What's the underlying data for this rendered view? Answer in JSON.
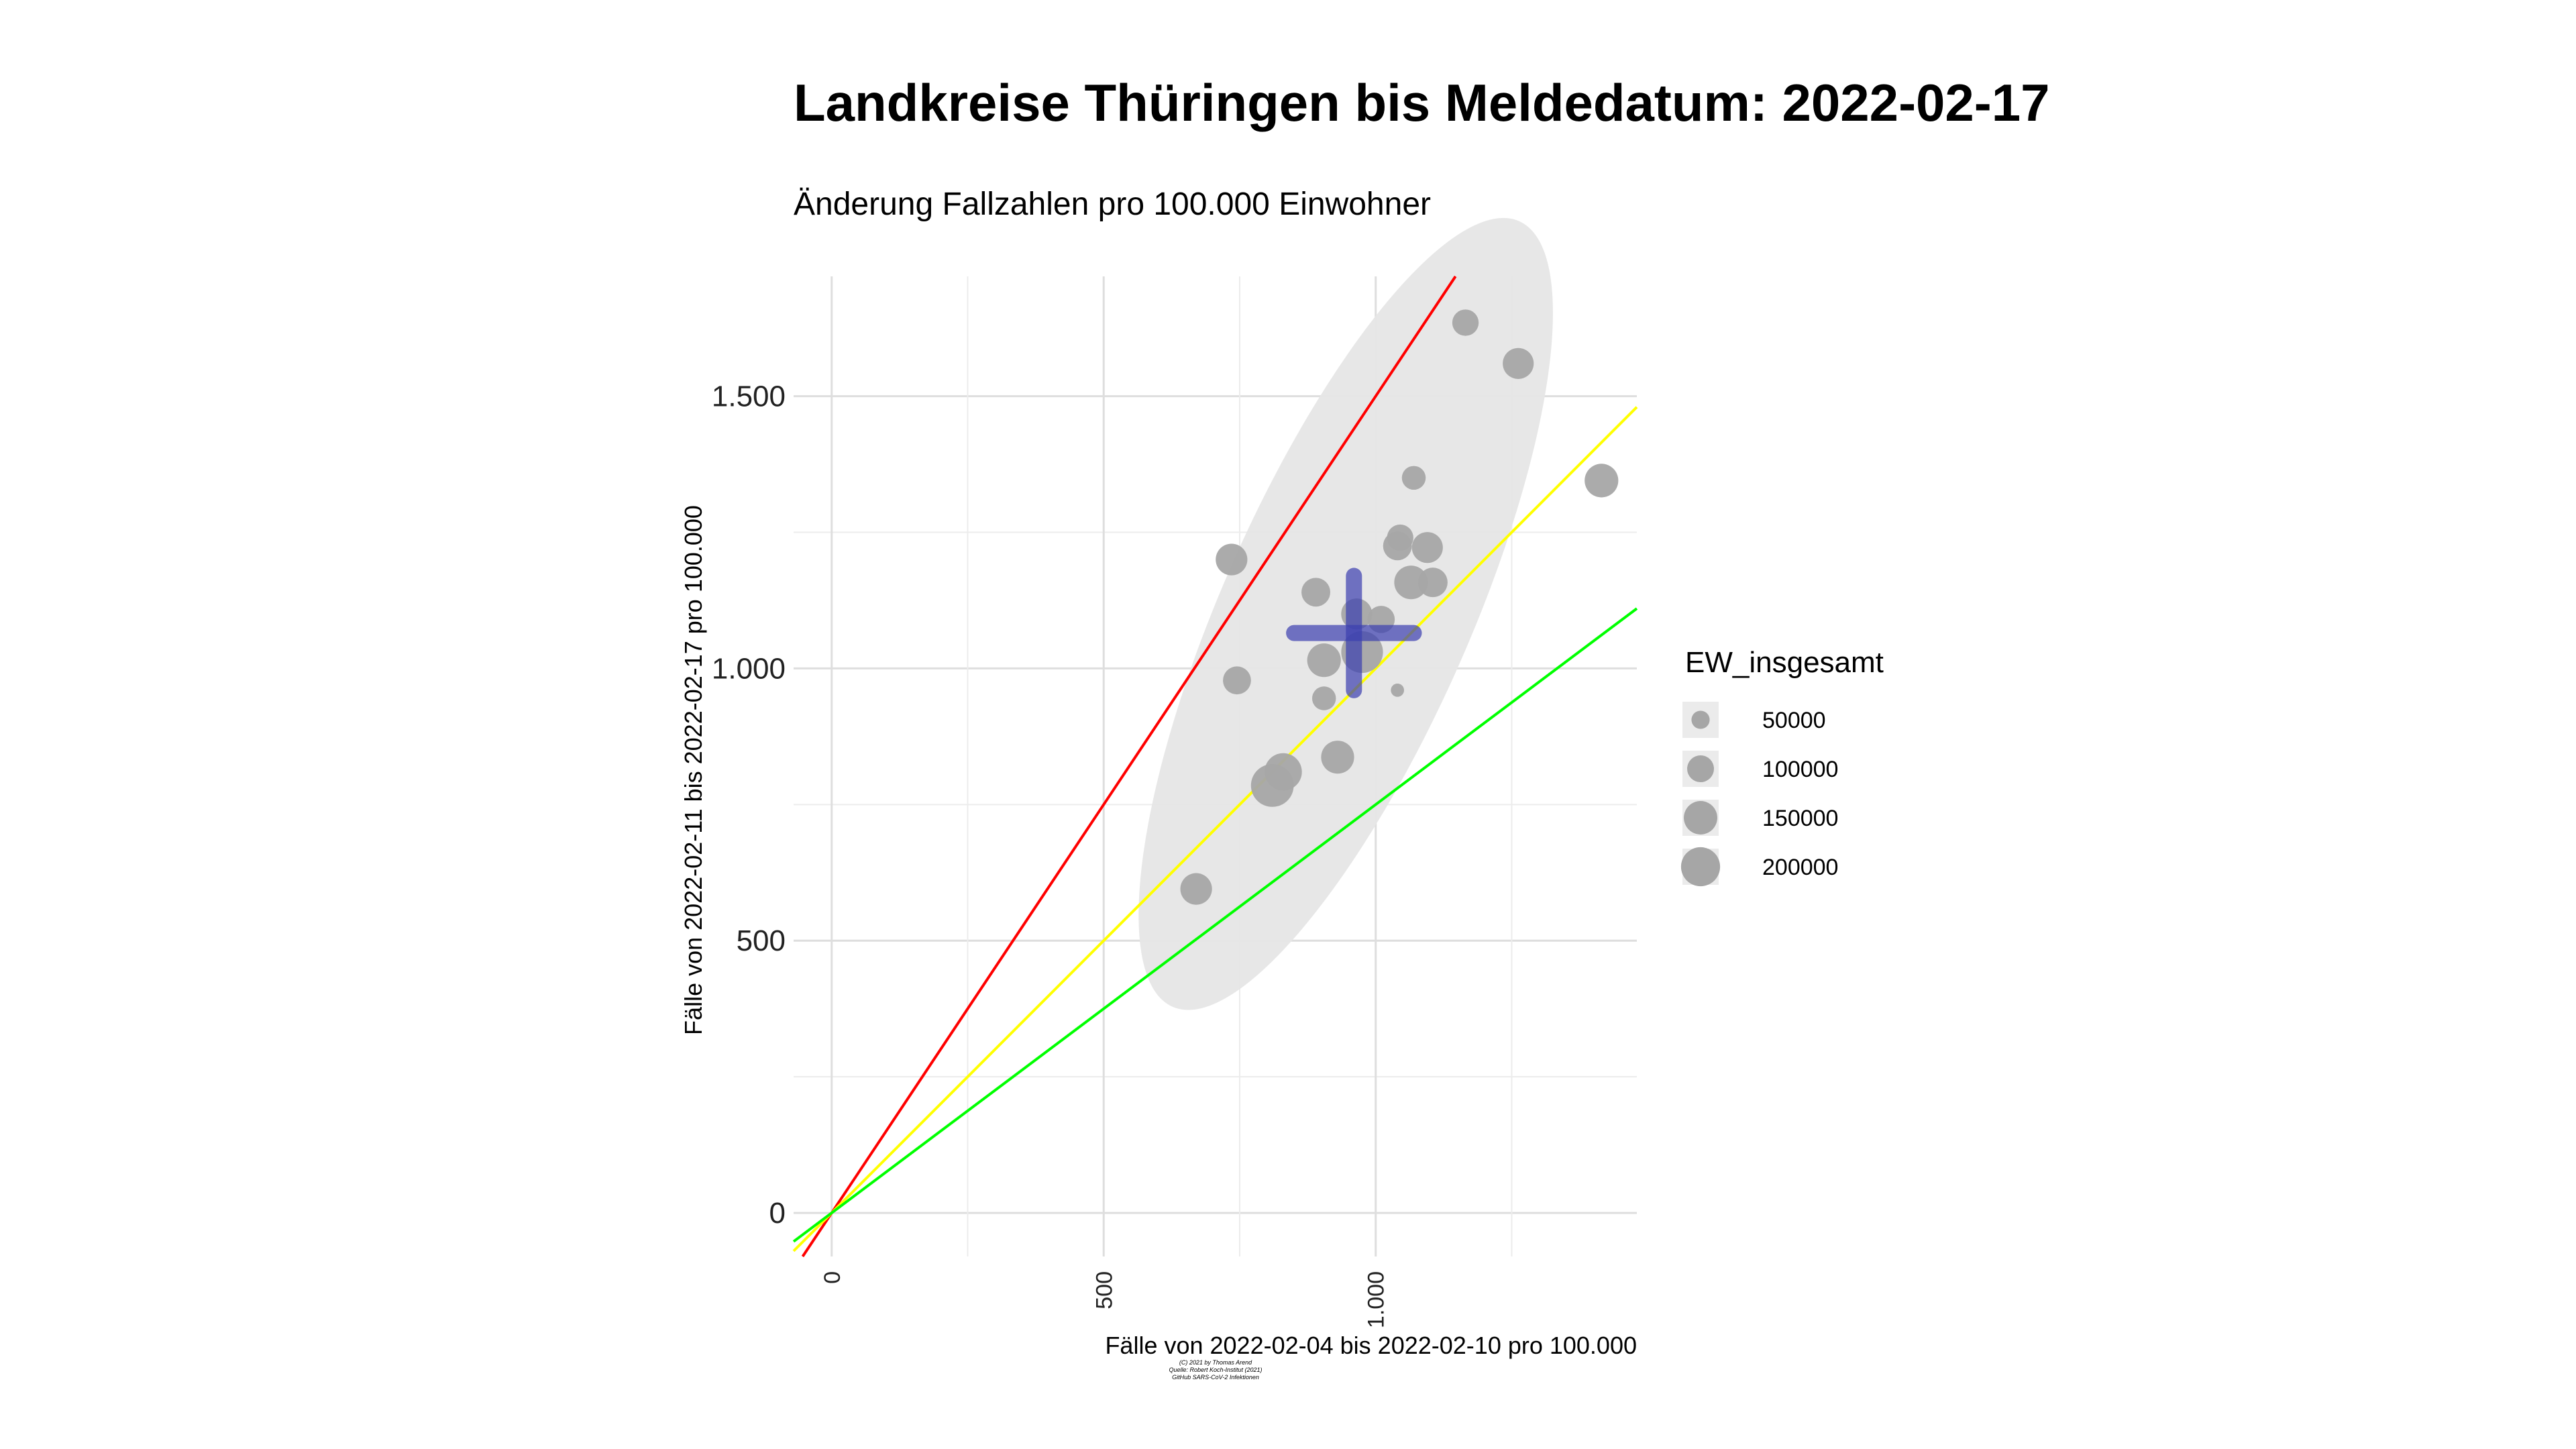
{
  "chart_data": {
    "type": "scatter",
    "title": "Landkreise Thüringen bis Meldedatum: 2022-02-17",
    "subtitle": "Änderung Fallzahlen pro 100.000 Einwohner",
    "xlabel": "Fälle von 2022-02-04 bis 2022-02-10 pro 100.000",
    "ylabel": "Fälle von 2022-02-11 bis 2022-02-17 pro 100.000",
    "xlim": [
      -70,
      1480
    ],
    "ylim": [
      -80,
      1720
    ],
    "x_ticks": [
      {
        "value": 0,
        "label": "0"
      },
      {
        "value": 500,
        "label": "500"
      },
      {
        "value": 1000,
        "label": "1.000"
      }
    ],
    "y_ticks": [
      {
        "value": 0,
        "label": "0"
      },
      {
        "value": 500,
        "label": "500"
      },
      {
        "value": 1000,
        "label": "1.000"
      },
      {
        "value": 1500,
        "label": "1.500"
      }
    ],
    "grid": true,
    "reference_lines": [
      {
        "slope": 1.5,
        "color": "#ff0000"
      },
      {
        "slope": 1.0,
        "color": "#ffff00"
      },
      {
        "slope": 0.75,
        "color": "#00ff00"
      }
    ],
    "ellipse": {
      "cx": 945,
      "cy": 1100,
      "rx": 640,
      "ry": 185,
      "angle_deg": 66.2,
      "color": "#e6e6e6"
    },
    "mean_cross": {
      "x": 960,
      "y": 1065,
      "x_half_width": 110,
      "y_half_height": 105,
      "color": "#3b3fb0"
    },
    "point_color": "#a6a6a6",
    "points": [
      {
        "x": 1165,
        "y": 1635,
        "ew": 80000
      },
      {
        "x": 1262,
        "y": 1560,
        "ew": 110000
      },
      {
        "x": 1415,
        "y": 1345,
        "ew": 130000
      },
      {
        "x": 1070,
        "y": 1350,
        "ew": 65000
      },
      {
        "x": 735,
        "y": 1200,
        "ew": 115000
      },
      {
        "x": 1045,
        "y": 1240,
        "ew": 80000
      },
      {
        "x": 1040,
        "y": 1225,
        "ew": 95000
      },
      {
        "x": 1095,
        "y": 1222,
        "ew": 110000
      },
      {
        "x": 1065,
        "y": 1158,
        "ew": 130000
      },
      {
        "x": 1105,
        "y": 1158,
        "ew": 100000
      },
      {
        "x": 890,
        "y": 1140,
        "ew": 95000
      },
      {
        "x": 965,
        "y": 1100,
        "ew": 110000
      },
      {
        "x": 1010,
        "y": 1090,
        "ew": 85000
      },
      {
        "x": 975,
        "y": 1030,
        "ew": 200000
      },
      {
        "x": 905,
        "y": 1015,
        "ew": 130000
      },
      {
        "x": 745,
        "y": 978,
        "ew": 90000
      },
      {
        "x": 905,
        "y": 945,
        "ew": 65000
      },
      {
        "x": 1040,
        "y": 960,
        "ew": 20000
      },
      {
        "x": 930,
        "y": 837,
        "ew": 125000
      },
      {
        "x": 830,
        "y": 810,
        "ew": 160000
      },
      {
        "x": 810,
        "y": 785,
        "ew": 210000
      },
      {
        "x": 670,
        "y": 595,
        "ew": 115000
      }
    ],
    "legend": {
      "title": "EW_insgesamt",
      "placement": "right",
      "entries": [
        {
          "label": "50000",
          "ew": 50000
        },
        {
          "label": "100000",
          "ew": 100000
        },
        {
          "label": "150000",
          "ew": 150000
        },
        {
          "label": "200000",
          "ew": 200000
        }
      ]
    },
    "caption_lines": [
      "(C) 2021 by Thomas Arend",
      "Quelle: Robert Koch-Institut (2021)",
      "GitHub SARS-CoV-2 Infektionen"
    ]
  }
}
